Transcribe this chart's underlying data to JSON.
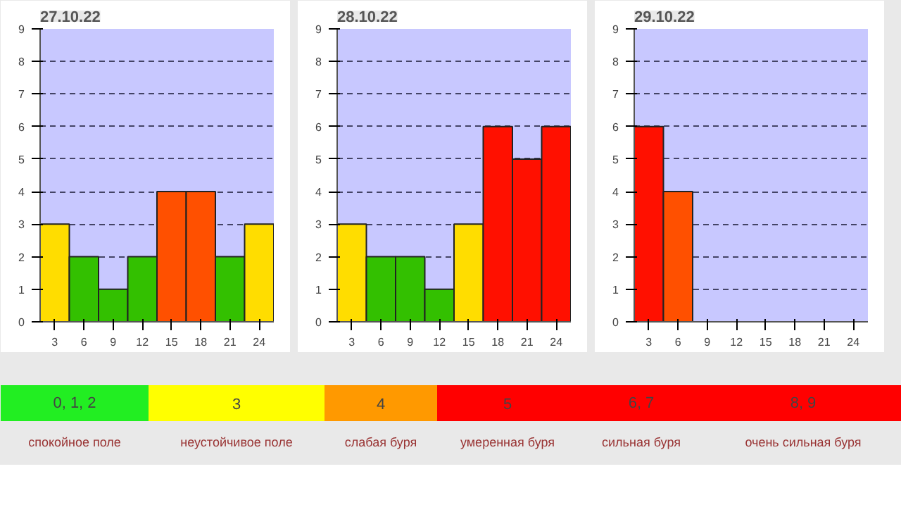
{
  "chart_data": [
    {
      "type": "bar",
      "title": "27.10.22",
      "categories": [
        "3",
        "6",
        "9",
        "12",
        "15",
        "18",
        "21",
        "24"
      ],
      "values": [
        3,
        2,
        1,
        2,
        4,
        4,
        2,
        3
      ],
      "colors": [
        "#ffdd00",
        "#33c000",
        "#33c000",
        "#33c000",
        "#ff5000",
        "#ff5000",
        "#33c000",
        "#ffdd00"
      ],
      "ylim": [
        0,
        9
      ],
      "yticks": [
        0,
        1,
        2,
        3,
        4,
        5,
        6,
        7,
        8,
        9
      ],
      "grid": "y",
      "line_style": "dashed"
    },
    {
      "type": "bar",
      "title": "28.10.22",
      "categories": [
        "3",
        "6",
        "9",
        "12",
        "15",
        "18",
        "21",
        "24"
      ],
      "values": [
        3,
        2,
        2,
        1,
        3,
        6,
        5,
        6
      ],
      "colors": [
        "#ffdd00",
        "#33c000",
        "#33c000",
        "#33c000",
        "#ffdd00",
        "#ff1000",
        "#ff1000",
        "#ff1000"
      ],
      "ylim": [
        0,
        9
      ],
      "yticks": [
        0,
        1,
        2,
        3,
        4,
        5,
        6,
        7,
        8,
        9
      ],
      "grid": "y",
      "line_style": "dashed"
    },
    {
      "type": "bar",
      "title": "29.10.22",
      "categories": [
        "3",
        "6",
        "9",
        "12",
        "15",
        "18",
        "21",
        "24"
      ],
      "values": [
        6,
        4,
        null,
        null,
        null,
        null,
        null,
        null
      ],
      "colors": [
        "#ff1000",
        "#ff5000",
        null,
        null,
        null,
        null,
        null,
        null
      ],
      "ylim": [
        0,
        9
      ],
      "yticks": [
        0,
        1,
        2,
        3,
        4,
        5,
        6,
        7,
        8,
        9
      ],
      "grid": "y",
      "line_style": "dashed"
    },
    {
      "type": "other",
      "categories": [
        "0, 1, 2",
        "3",
        "4",
        "5",
        "6, 7",
        "8, 9"
      ],
      "colors": [
        "#22ee22",
        "#ffff00",
        "#ff9900",
        "#ff0000",
        "#ff0000",
        "#ff0000"
      ],
      "annotations": [
        "спокойное поле",
        "неустойчивое поле",
        "слабая буря",
        "умеренная буря",
        "сильная буря",
        "очень сильная буря"
      ]
    }
  ]
}
